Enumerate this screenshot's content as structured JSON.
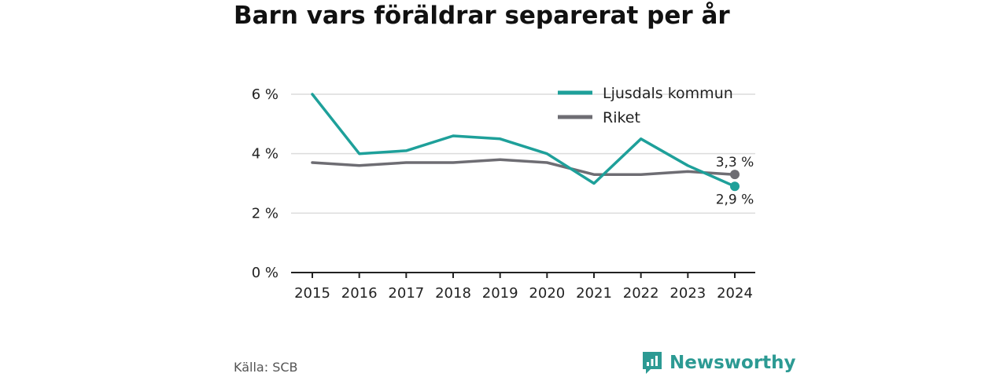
{
  "title": "Barn vars föräldrar separerat per år",
  "source": "Källa: SCB",
  "brand": {
    "name": "Newsworthy",
    "icon": "newsworthy-logo-icon",
    "color": "#2c9a93"
  },
  "chart_data": {
    "type": "line",
    "title": "Barn vars föräldrar separerat per år",
    "xlabel": "",
    "ylabel": "",
    "ylim": [
      0,
      6
    ],
    "y_ticks": [
      0,
      2,
      4,
      6
    ],
    "y_tick_labels": [
      "0 %",
      "2 %",
      "4 %",
      "6 %"
    ],
    "x": [
      "2015",
      "2016",
      "2017",
      "2018",
      "2019",
      "2020",
      "2021",
      "2022",
      "2023",
      "2024"
    ],
    "grid": true,
    "legend_position": "top-right",
    "series": [
      {
        "name": "Ljusdals kommun",
        "color": "#1ea09a",
        "values": [
          6.0,
          4.0,
          4.1,
          4.6,
          4.5,
          4.0,
          3.0,
          4.5,
          3.6,
          2.9
        ],
        "end_label": "2,9 %"
      },
      {
        "name": "Riket",
        "color": "#6e6d73",
        "values": [
          3.7,
          3.6,
          3.7,
          3.7,
          3.8,
          3.7,
          3.3,
          3.3,
          3.4,
          3.3
        ],
        "end_label": "3,3 %"
      }
    ]
  }
}
